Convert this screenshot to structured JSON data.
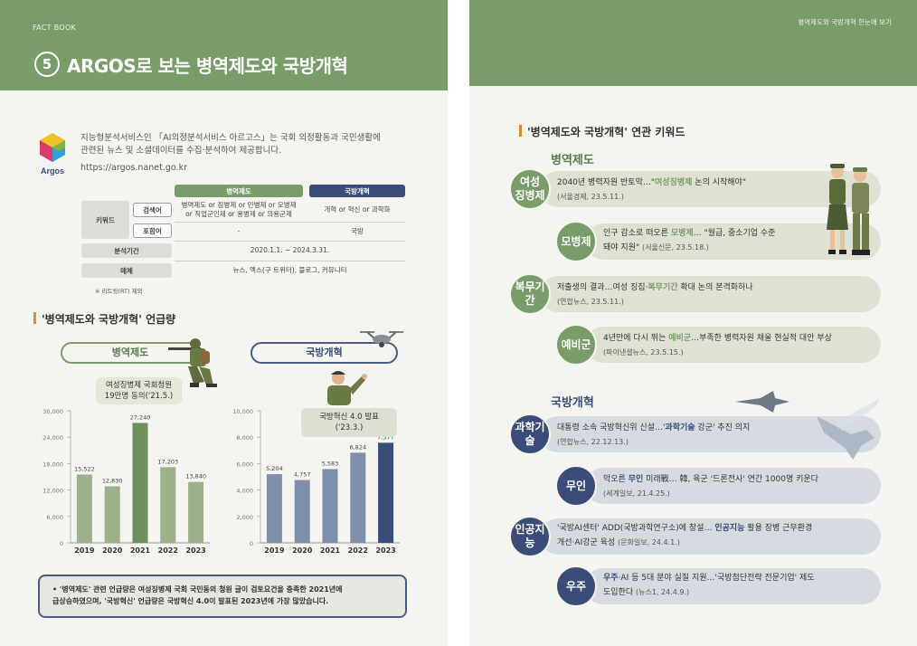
{
  "left_page": {
    "header_tag": "FACT BOOK",
    "section_number": "5",
    "title": "ARGOS로 보는 병역제도와 국방개혁",
    "logo_text": "Argos",
    "intro_line1": "지능형분석서비스인 「AI의정분석서비스 아르고스」는 국회 의정활동과 국민생활에",
    "intro_line2": "관련된 뉴스 및 소셜데이터를 수집·분석하여 제공합니다.",
    "url": "https://argos.nanet.go.kr",
    "table": {
      "col_headers": [
        "병역제도",
        "국방개혁"
      ],
      "row_keyword": "키워드",
      "sub_search": "검색어",
      "sub_include": "포함어",
      "search_col1_line1": "병역제도 or 징병제 or 민병제 or 모병제",
      "search_col1_line2": "or 직업군인제 or 용병제 or 의용군제",
      "search_col2": "개혁 or 혁신 or 과학화",
      "include_col1": "-",
      "include_col2": "국방",
      "row_period": "분석기간",
      "period_value": "2020.1.1. ~ 2024.3.31.",
      "row_media": "매체",
      "media_value": "뉴스, 엑스(구 트위터), 블로그, 커뮤니티",
      "footnote": "※ 리트윗(RT) 제외"
    },
    "mentions_title": "'병역제도와 국방개혁' 언급량",
    "bottom_note_line1": "• '병역제도' 관련 언급량은 여성징병제 국회 국민동의 청원 글이 검토요건을 충족한 2021년에",
    "bottom_note_line2": "급상승하였으며, '국방혁신' 언급량은 국방혁신 4.0이 발표된 2023년에 가장 많았습니다."
  },
  "chart_data": [
    {
      "type": "bar",
      "title": "병역제도",
      "categories": [
        "2019",
        "2020",
        "2021",
        "2022",
        "2023"
      ],
      "values": [
        15522,
        12830,
        27240,
        17203,
        13840
      ],
      "value_labels": [
        "15,522",
        "12,830",
        "27,240",
        "17,203",
        "13,840"
      ],
      "ylim": [
        0,
        30000
      ],
      "yticks": [
        "0",
        "6,000",
        "12,000",
        "18,000",
        "24,000",
        "30,000"
      ],
      "ytick_values": [
        0,
        6000,
        12000,
        18000,
        24000,
        30000
      ],
      "annotation_line1": "여성징병제 국회청원",
      "annotation_line2": "19만명 동의('21.5.)",
      "highlight_index": 2,
      "colors": {
        "base": "#9bb08b",
        "highlight": "#6f8f5e"
      }
    },
    {
      "type": "bar",
      "title": "국방개혁",
      "categories": [
        "2019",
        "2020",
        "2021",
        "2022",
        "2023"
      ],
      "values": [
        5204,
        4757,
        5583,
        6824,
        7577
      ],
      "value_labels": [
        "5,204",
        "4,757",
        "5,583",
        "6,824",
        "7,577"
      ],
      "ylim": [
        0,
        10000
      ],
      "yticks": [
        "0",
        "2,000",
        "4,000",
        "6,000",
        "8,000",
        "10,000"
      ],
      "ytick_values": [
        0,
        2000,
        4000,
        6000,
        8000,
        10000
      ],
      "annotation_line1": "국방혁신 4.0 발표('23.3.)",
      "highlight_index": 4,
      "colors": {
        "base": "#7e8fab",
        "highlight": "#3c4c78"
      }
    }
  ],
  "right_page": {
    "header_tag": "병역제도와 국방개혁 한눈에 보기",
    "section_title": "'병역제도와 국방개혁' 연관 키워드",
    "group1_title": "병역제도",
    "group2_title": "국방개혁",
    "keywords": [
      {
        "kw_line1": "여성",
        "kw_line2": "징병제",
        "pre": "2040년 병력자원 반토막…\"",
        "hl": "여성징병제",
        "post": " 논의 시작해야\"",
        "line2": "",
        "src": "(서울경제, 23.5.11.)"
      },
      {
        "kw_line1": "모병제",
        "kw_line2": "",
        "pre": "인구 감소로 떠오른 ",
        "hl": "모병제",
        "post": "… \"월급, 중소기업 수준",
        "line2": "돼야 지원\"",
        "src": "(서울신문, 23.5.18.)"
      },
      {
        "kw_line1": "복무기간",
        "kw_line2": "",
        "pre": "저출생의 결과…여성 징집·",
        "hl": "복무기간",
        "post": " 확대 논의 본격화하나",
        "line2": "",
        "src": "(연합뉴스, 23.5.11.)"
      },
      {
        "kw_line1": "예비군",
        "kw_line2": "",
        "pre": "4년만에 다시 뛰는 ",
        "hl": "예비군",
        "post": "…부족한 병력자원 채울 현실적 대안 부상",
        "line2": "",
        "src": "(파이낸셜뉴스, 23.5.15.)"
      },
      {
        "kw_line1": "과학기술",
        "kw_line2": "",
        "pre": "대통령 소속 국방혁신위 신설…'",
        "hl": "과학기술",
        "post": " 강군' 추진 의지",
        "line2": "",
        "src": "(연합뉴스, 22.12.13.)"
      },
      {
        "kw_line1": "무인",
        "kw_line2": "",
        "pre": "막오른 ",
        "hl": "무인",
        "post": " 미래戰… 韓, 육군 '드론전사' 연간 1000명 키운다",
        "line2": "",
        "src": "(세계일보, 21.4.25.)"
      },
      {
        "kw_line1": "인공지능",
        "kw_line2": "",
        "pre": "'국방AI센터' ADD(국방과학연구소)에 창설… ",
        "hl": "인공지능",
        "post": " 활용 장병 근무환경",
        "line2": "개선·AI강군 육성",
        "src": "(문화일보, 24.4.1.)"
      },
      {
        "kw_line1": "우주",
        "kw_line2": "",
        "pre": "",
        "hl": "우주",
        "post": "·AI 등 5대 분야 실질 지원…'국방첨단전략 전문기업' 제도",
        "line2": "도입한다",
        "src": "(뉴스1, 24.4.9.)"
      }
    ]
  }
}
